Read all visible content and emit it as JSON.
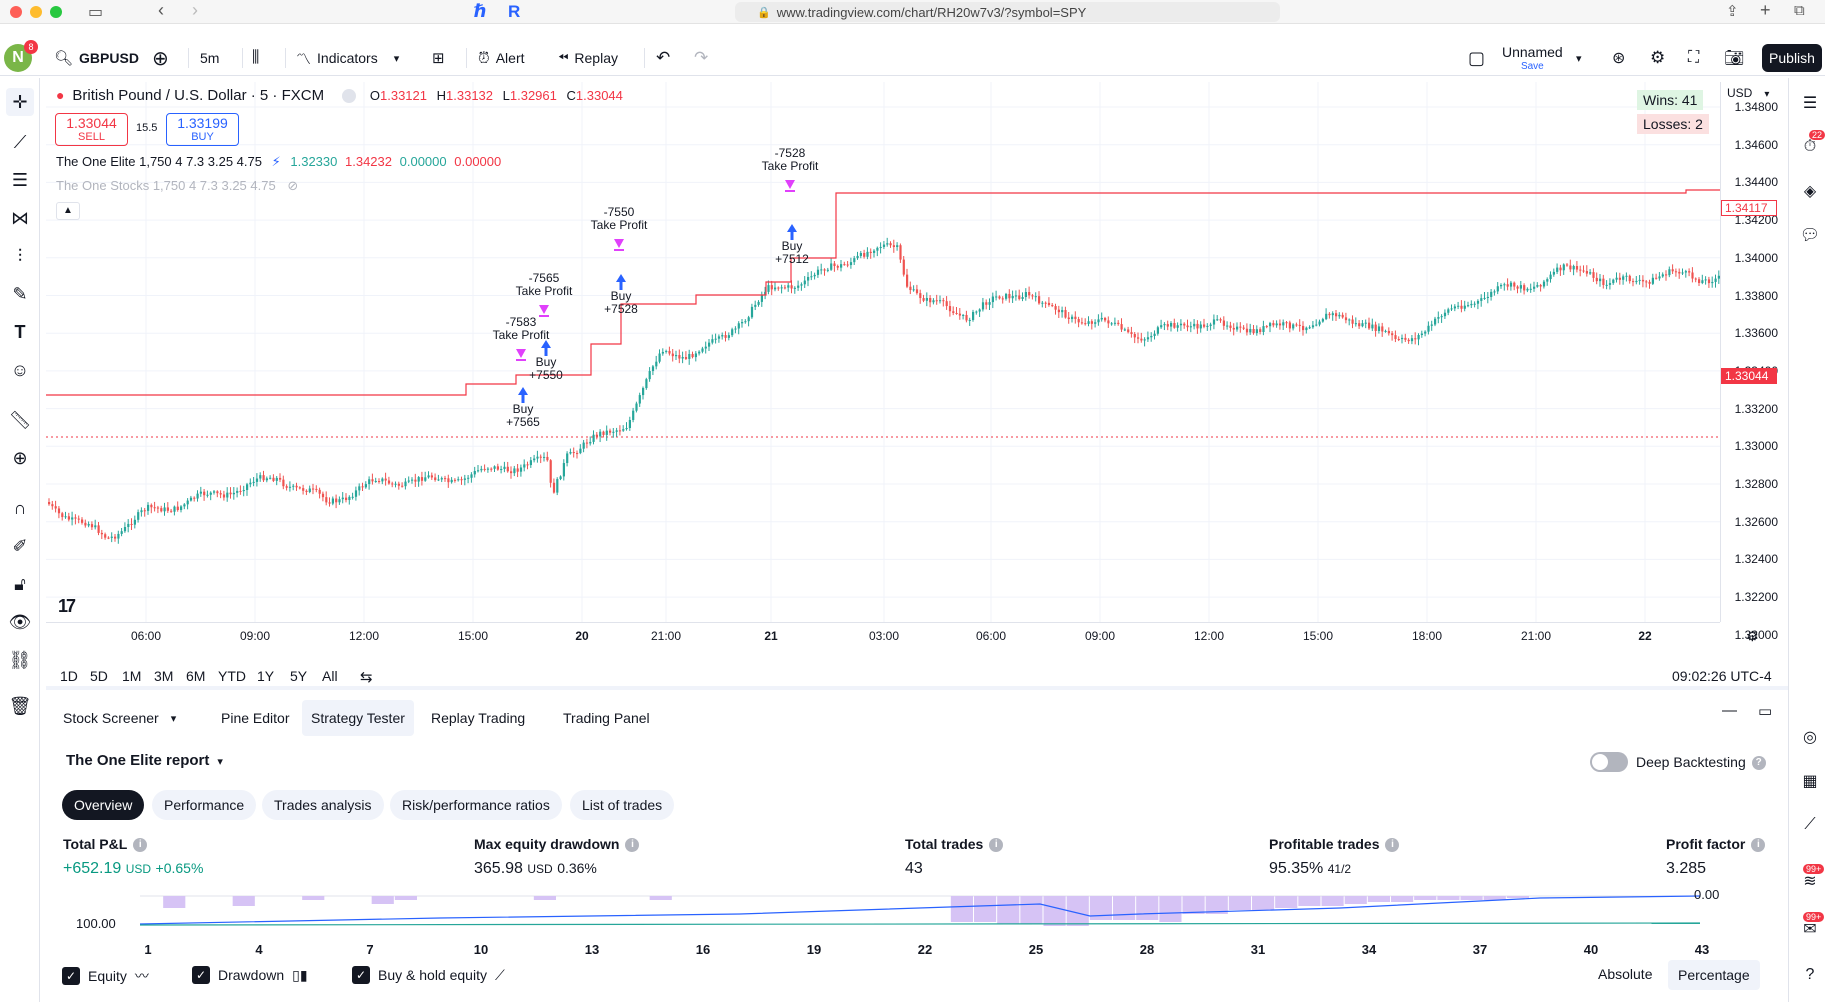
{
  "browser": {
    "url": "www.tradingview.com/chart/RH20w7v3/?symbol=SPY",
    "ext1": "ℏ",
    "ext2": "R"
  },
  "topbar": {
    "avatar_letter": "N",
    "avatar_badge": "8",
    "symbol": "GBPUSD",
    "interval": "5m",
    "indicators": "Indicators",
    "alert": "Alert",
    "replay": "Replay",
    "layout_name": "Unnamed",
    "layout_save": "Save",
    "publish": "Publish"
  },
  "legend": {
    "title": "British Pound / U.S. Dollar · 5 · FXCM",
    "o_label": "O",
    "o_val": "1.33121",
    "h_label": "H",
    "h_val": "1.33132",
    "l_label": "L",
    "l_val": "1.32961",
    "c_label": "C",
    "c_val": "1.33044",
    "sell_price": "1.33044",
    "sell_label": "SELL",
    "spread": "15.5",
    "buy_price": "1.33199",
    "buy_label": "BUY",
    "ind1_name": "The One Elite 1,750 4 7.3 3.25 4.75",
    "ind1_v1": "1.32330",
    "ind1_v2": "1.34232",
    "ind1_v3": "0.00000",
    "ind1_v4": "0.00000",
    "ind2_name": "The One Stocks 1,750 4 7.3 3.25 4.75"
  },
  "wins": "Wins: 41",
  "losses": "Losses: 2",
  "currency": "USD",
  "price_labels": [
    "1.34800",
    "1.34600",
    "1.34400",
    "1.34200",
    "1.34000",
    "1.33800",
    "1.33600",
    "1.33400",
    "1.33200",
    "1.33000",
    "1.32800",
    "1.32600",
    "1.32400",
    "1.32200",
    "1.32000"
  ],
  "price_tags": {
    "current": "1.33044",
    "upper": "1.34117"
  },
  "time_labels": [
    "06:00",
    "09:00",
    "12:00",
    "15:00",
    "20",
    "21:00",
    "21",
    "03:00",
    "06:00",
    "09:00",
    "12:00",
    "15:00",
    "18:00",
    "21:00",
    "22"
  ],
  "annotations": [
    {
      "kind": "tp",
      "l1": "-7583",
      "l2": "Take Profit"
    },
    {
      "kind": "tp",
      "l1": "-7565",
      "l2": "Take Profit"
    },
    {
      "kind": "tp",
      "l1": "-7550",
      "l2": "Take Profit"
    },
    {
      "kind": "tp",
      "l1": "-7528",
      "l2": "Take Profit"
    },
    {
      "kind": "buy",
      "l1": "Buy",
      "l2": "+7565"
    },
    {
      "kind": "buy",
      "l1": "Buy",
      "l2": "+7550"
    },
    {
      "kind": "buy",
      "l1": "Buy",
      "l2": "+7528"
    },
    {
      "kind": "buy",
      "l1": "Buy",
      "l2": "+7512"
    }
  ],
  "ranges": [
    "1D",
    "5D",
    "1M",
    "3M",
    "6M",
    "YTD",
    "1Y",
    "5Y",
    "All"
  ],
  "clock": "09:02:26 UTC-4",
  "panel_tabs": [
    "Stock Screener",
    "Pine Editor",
    "Strategy Tester",
    "Replay Trading",
    "Trading Panel"
  ],
  "report_title": "The One Elite report",
  "deep_backtesting": "Deep Backtesting",
  "sub_tabs": [
    "Overview",
    "Performance",
    "Trades analysis",
    "Risk/performance ratios",
    "List of trades"
  ],
  "metrics": {
    "total_pnl_label": "Total P&L",
    "total_pnl_value": "+652.19",
    "total_pnl_unit": "USD",
    "total_pnl_pct": "+0.65%",
    "max_dd_label": "Max equity drawdown",
    "max_dd_value": "365.98",
    "max_dd_unit": "USD",
    "max_dd_pct": "0.36%",
    "total_trades_label": "Total trades",
    "total_trades_value": "43",
    "profitable_label": "Profitable trades",
    "profitable_value": "95.35%",
    "profitable_ratio": "41/2",
    "profit_factor_label": "Profit factor",
    "profit_factor_value": "3.285"
  },
  "equity_chart": {
    "y_top": "0.00",
    "y_bottom": "100.00",
    "x_labels": [
      "1",
      "4",
      "7",
      "10",
      "13",
      "16",
      "19",
      "22",
      "25",
      "28",
      "31",
      "34",
      "37",
      "40",
      "43"
    ]
  },
  "bottom_controls": {
    "equity": "Equity",
    "drawdown": "Drawdown",
    "buy_hold": "Buy & hold equity",
    "absolute": "Absolute",
    "percentage": "Percentage"
  },
  "colors": {
    "up": "#26a69a",
    "down": "#ef5350",
    "accent": "#2962ff",
    "tp_marker": "#e040fb"
  }
}
